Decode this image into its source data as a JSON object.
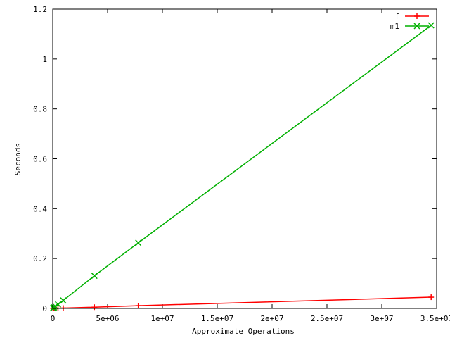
{
  "chart_data": {
    "type": "line",
    "title": "",
    "xlabel": "Approximate Operations",
    "ylabel": "Seconds",
    "xlim": [
      0,
      35000000
    ],
    "ylim": [
      0,
      1.2
    ],
    "x_ticks": [
      0,
      5000000,
      10000000,
      15000000,
      20000000,
      25000000,
      30000000,
      35000000
    ],
    "x_tick_labels": [
      "0",
      "5e+06",
      "1e+07",
      "1.5e+07",
      "2e+07",
      "2.5e+07",
      "3e+07",
      "3.5e+07"
    ],
    "y_ticks": [
      0,
      0.2,
      0.4,
      0.6,
      0.8,
      1,
      1.2
    ],
    "y_tick_labels": [
      "0",
      "0.2",
      "0.4",
      "0.6",
      "0.8",
      "1",
      "1.2"
    ],
    "grid": false,
    "legend_position": "top-right",
    "series": [
      {
        "name": "f",
        "color": "#ff0000",
        "marker": "plus",
        "x": [
          30000,
          60000,
          120000,
          240000,
          480000,
          960000,
          3800000,
          7800000,
          34500000
        ],
        "y": [
          0.0001,
          0.0001,
          0.0002,
          0.0004,
          0.0007,
          0.0013,
          0.005,
          0.011,
          0.045
        ]
      },
      {
        "name": "m1",
        "color": "#00b000",
        "marker": "x",
        "x": [
          30000,
          60000,
          120000,
          240000,
          480000,
          960000,
          3800000,
          7800000,
          34500000
        ],
        "y": [
          0.001,
          0.002,
          0.004,
          0.008,
          0.016,
          0.032,
          0.131,
          0.263,
          1.135
        ]
      }
    ]
  }
}
